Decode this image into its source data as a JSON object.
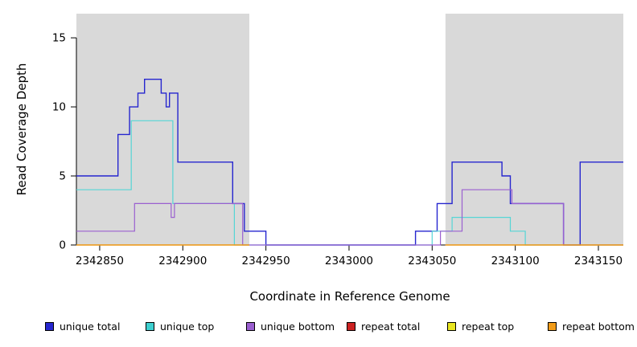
{
  "chart_data": {
    "type": "line",
    "subtype": "step-coverage",
    "title": "",
    "xlabel": "Coordinate in Reference Genome",
    "ylabel": "Read Coverage Depth",
    "xlim": [
      2342836,
      2343165
    ],
    "ylim": [
      0,
      16.75
    ],
    "x_ticks": [
      2342850,
      2342900,
      2342950,
      2343000,
      2343050,
      2343100,
      2343150
    ],
    "y_ticks": [
      0,
      5,
      10,
      15
    ],
    "grid": false,
    "background_color": "#ffffff",
    "shaded_region_color": "#d9d9d9",
    "shaded_regions": [
      {
        "name": "left",
        "x0": 2342836,
        "x1": 2342940
      },
      {
        "name": "right",
        "x0": 2343058,
        "x1": 2343165
      }
    ],
    "series": [
      {
        "name": "unique total",
        "color": "#2626cf",
        "width": 1.4,
        "segments": [
          [
            [
              2342836,
              5
            ],
            [
              2342861,
              8
            ],
            [
              2342868,
              10
            ],
            [
              2342873,
              11
            ],
            [
              2342877,
              12
            ],
            [
              2342887,
              11
            ],
            [
              2342890,
              10
            ],
            [
              2342892,
              11
            ],
            [
              2342897,
              6
            ],
            [
              2342930,
              3
            ],
            [
              2342937,
              1
            ],
            [
              2342950,
              0
            ],
            [
              2343040,
              1
            ],
            [
              2343053,
              3
            ],
            [
              2343062,
              6
            ],
            [
              2343092,
              5
            ],
            [
              2343097,
              3
            ],
            [
              2343129,
              0
            ],
            [
              2343139,
              6
            ],
            [
              2343165,
              6
            ]
          ]
        ]
      },
      {
        "name": "unique top",
        "color": "#55d6d6",
        "width": 1.2,
        "segments": [
          [
            [
              2342836,
              4
            ],
            [
              2342869,
              9
            ],
            [
              2342894,
              3
            ],
            [
              2342931,
              0
            ],
            [
              2343050,
              1
            ],
            [
              2343062,
              2
            ],
            [
              2343097,
              1
            ],
            [
              2343106,
              0
            ],
            [
              2343165,
              0
            ]
          ]
        ]
      },
      {
        "name": "unique bottom",
        "color": "#9a5fd0",
        "width": 1.2,
        "segments": [
          [
            [
              2342836,
              1
            ],
            [
              2342871,
              3
            ],
            [
              2342893,
              2
            ],
            [
              2342895,
              3
            ],
            [
              2342936,
              0
            ],
            [
              2343055,
              1
            ],
            [
              2343068,
              4
            ],
            [
              2343098,
              3
            ],
            [
              2343129,
              0
            ],
            [
              2343165,
              0
            ]
          ]
        ]
      },
      {
        "name": "repeat total",
        "color": "#cc2222",
        "width": 1.2,
        "segments": [
          [
            [
              2342836,
              0
            ],
            [
              2342940,
              0
            ]
          ],
          [
            [
              2343058,
              0
            ],
            [
              2343165,
              0
            ]
          ]
        ]
      },
      {
        "name": "repeat top",
        "color": "#e8e520",
        "width": 1.2,
        "segments": [
          [
            [
              2342836,
              0
            ],
            [
              2342940,
              0
            ]
          ],
          [
            [
              2343058,
              0
            ],
            [
              2343165,
              0
            ]
          ]
        ]
      },
      {
        "name": "repeat bottom",
        "color": "#f29c19",
        "width": 1.2,
        "segments": [
          [
            [
              2342836,
              0
            ],
            [
              2342940,
              0
            ]
          ],
          [
            [
              2343058,
              0
            ],
            [
              2343165,
              0
            ]
          ]
        ]
      }
    ],
    "legend": {
      "position": "bottom",
      "entries": [
        {
          "label": "unique total",
          "color": "#2626cf"
        },
        {
          "label": "unique top",
          "color": "#3ed0d0"
        },
        {
          "label": "unique bottom",
          "color": "#9a5fd0"
        },
        {
          "label": "repeat total",
          "color": "#cc2222"
        },
        {
          "label": "repeat top",
          "color": "#e8e520"
        },
        {
          "label": "repeat bottom",
          "color": "#f29c19"
        }
      ]
    }
  }
}
